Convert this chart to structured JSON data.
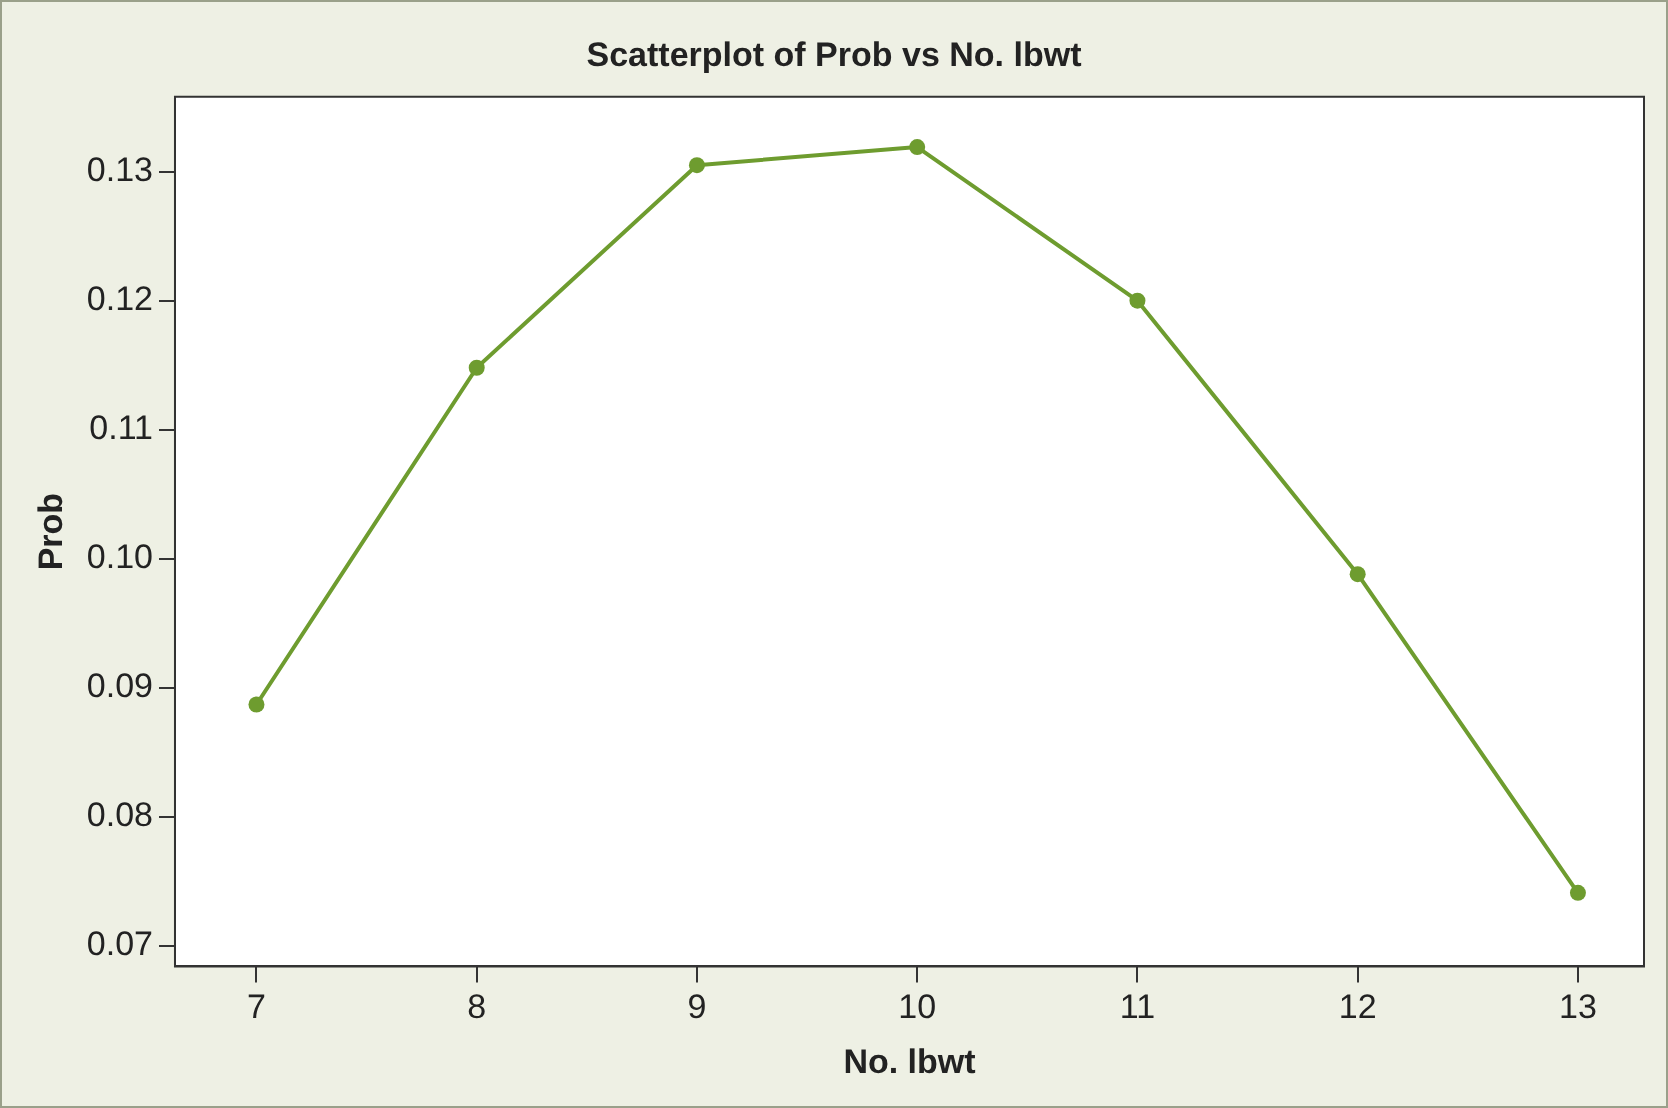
{
  "chart_data": {
    "type": "line",
    "title": "Scatterplot of Prob vs No. lbwt",
    "xlabel": "No. lbwt",
    "ylabel": "Prob",
    "x": [
      7,
      8,
      9,
      10,
      11,
      12,
      13
    ],
    "series": [
      {
        "color": "#6e9c2f",
        "values": [
          0.0887,
          0.1148,
          0.1305,
          0.1319,
          0.12,
          0.0988,
          0.0741
        ]
      }
    ],
    "xlim": [
      6.63,
      13.3
    ],
    "xticks": [
      7,
      8,
      9,
      10,
      11,
      12,
      13
    ],
    "ylim": [
      0.0684,
      0.1358
    ],
    "yticks": [
      0.07,
      0.08,
      0.09,
      {
        "value": 0.1,
        "label": "0.10"
      },
      0.11,
      0.12,
      0.13
    ],
    "grid": false,
    "legend": false,
    "marker": "circle",
    "line_style": "solid"
  }
}
